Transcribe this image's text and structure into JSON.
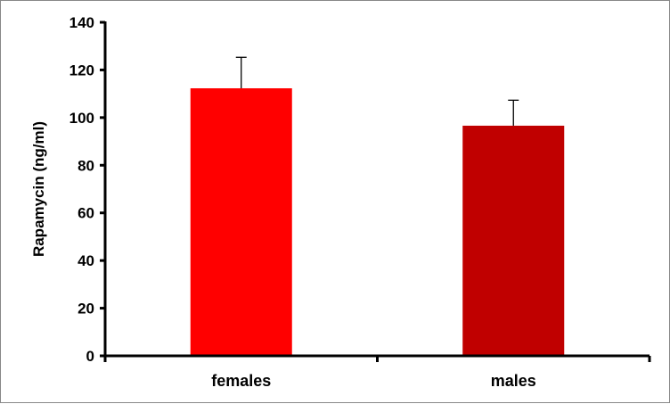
{
  "chart_data": {
    "type": "bar",
    "title": "",
    "xlabel": "",
    "ylabel": "Rapamycin  (ng/ml)",
    "categories": [
      "females",
      "males"
    ],
    "values": [
      112.3,
      96.6
    ],
    "error_upper": [
      13.0,
      10.7
    ],
    "colors": [
      "#ff0000",
      "#c00000"
    ],
    "ylim": [
      0,
      140
    ],
    "yticks": [
      0,
      20,
      40,
      60,
      80,
      100,
      120,
      140
    ],
    "grid": false,
    "legend": "none"
  }
}
